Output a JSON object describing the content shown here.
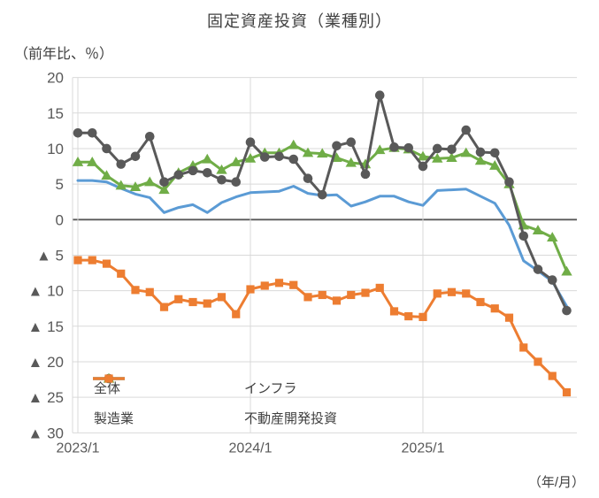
{
  "title": "固定資産投資（業種別）",
  "y_axis_unit": "（前年比、％）",
  "x_axis_unit": "（年/月）",
  "colors": {
    "grid": "#d9d9d9",
    "zero_line": "#595959",
    "axis_text": "#595959",
    "title_text": "#404040"
  },
  "chart_data": {
    "type": "line",
    "title": "固定資産投資（業種別）",
    "ylabel": "（前年比、％）",
    "xlabel": "（年/月）",
    "ylim": [
      -30,
      20
    ],
    "grid": true,
    "legend_position": "inside-bottom-left",
    "y_ticks": [
      {
        "value": 20,
        "label": "20"
      },
      {
        "value": 15,
        "label": "15"
      },
      {
        "value": 10,
        "label": "10"
      },
      {
        "value": 5,
        "label": "5"
      },
      {
        "value": 0,
        "label": "0"
      },
      {
        "value": -5,
        "label": "▲ 5"
      },
      {
        "value": -10,
        "label": "▲ 10"
      },
      {
        "value": -15,
        "label": "▲ 15"
      },
      {
        "value": -20,
        "label": "▲ 20"
      },
      {
        "value": -25,
        "label": "▲ 25"
      },
      {
        "value": -30,
        "label": "▲ 30"
      }
    ],
    "x_ticks": [
      {
        "index": 0,
        "label": "2023/1"
      },
      {
        "index": 12,
        "label": "2024/1"
      },
      {
        "index": 24,
        "label": "2025/1"
      }
    ],
    "series": [
      {
        "name": "全体",
        "color": "#5B9BD5",
        "marker": "none",
        "values": [
          5.5,
          5.5,
          5.3,
          4.4,
          3.6,
          3.1,
          1.0,
          1.7,
          2.1,
          1.0,
          2.4,
          3.2,
          3.8,
          3.9,
          4.0,
          4.7,
          3.7,
          3.4,
          3.5,
          1.9,
          2.5,
          3.3,
          3.3,
          2.5,
          2.0,
          4.1,
          4.2,
          4.3,
          3.3,
          2.3,
          -0.8,
          -5.8,
          -7.2,
          -8.7,
          -12.2
        ]
      },
      {
        "name": "インフラ",
        "color": "#595959",
        "marker": "circle",
        "values": [
          12.2,
          12.2,
          10.0,
          7.8,
          8.9,
          11.7,
          5.3,
          6.3,
          6.9,
          6.6,
          5.6,
          5.3,
          10.9,
          8.8,
          8.9,
          8.5,
          5.8,
          3.5,
          10.4,
          10.9,
          6.4,
          17.5,
          10.2,
          10.1,
          7.5,
          10.0,
          9.9,
          12.6,
          9.5,
          9.4,
          5.3,
          -2.3,
          -7.0,
          -8.5,
          -12.8
        ]
      },
      {
        "name": "製造業",
        "color": "#70AD47",
        "marker": "triangle",
        "values": [
          8.1,
          8.1,
          6.2,
          4.8,
          4.6,
          5.3,
          4.2,
          6.6,
          7.6,
          8.5,
          7.0,
          8.1,
          8.6,
          9.4,
          9.4,
          10.5,
          9.4,
          9.3,
          8.7,
          8.0,
          7.8,
          9.8,
          10.1,
          9.9,
          8.9,
          8.6,
          8.7,
          9.4,
          8.3,
          7.6,
          5.0,
          -0.8,
          -1.5,
          -2.5,
          -7.3
        ]
      },
      {
        "name": "不動産開発投資",
        "color": "#ED7D31",
        "marker": "square",
        "values": [
          -5.7,
          -5.7,
          -6.2,
          -7.6,
          -9.9,
          -10.2,
          -12.3,
          -11.2,
          -11.6,
          -11.8,
          -10.9,
          -13.3,
          -9.8,
          -9.3,
          -8.9,
          -9.2,
          -10.9,
          -10.6,
          -11.4,
          -10.6,
          -10.3,
          -9.6,
          -12.9,
          -13.6,
          -13.7,
          -10.4,
          -10.2,
          -10.4,
          -11.6,
          -12.5,
          -13.8,
          -18.0,
          -20.0,
          -22.0,
          -24.3
        ]
      }
    ]
  }
}
